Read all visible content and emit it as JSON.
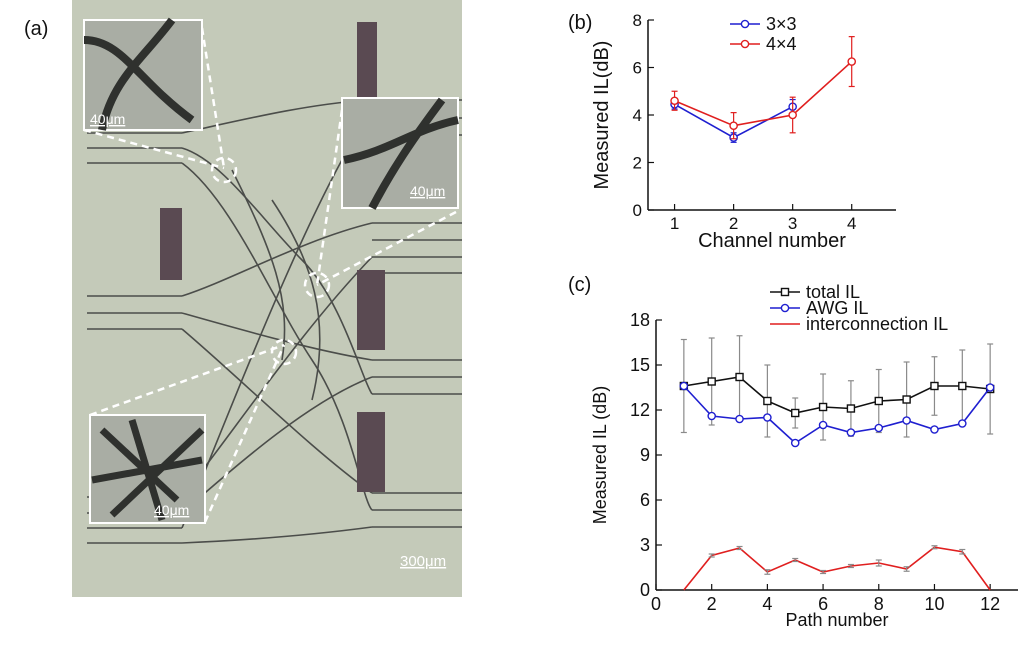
{
  "panel_labels": {
    "a": "(a)",
    "b": "(b)",
    "c": "(c)"
  },
  "micrograph": {
    "insets": [
      {
        "scale": "40μm"
      },
      {
        "scale": "40μm"
      },
      {
        "scale": "40μm"
      }
    ],
    "scale_bar": "300μm",
    "colors": {
      "background": "#c4cab9",
      "waveguide": "#4b4d4a",
      "inset_bg": "#a9ada4"
    }
  },
  "chart_data": [
    {
      "type": "line",
      "xlabel": "Channel number",
      "ylabel": "Measured IL(dB)",
      "xlim": [
        0.55,
        4.75
      ],
      "ylim": [
        0,
        8
      ],
      "xticks": [
        1,
        2,
        3,
        4
      ],
      "yticks": [
        0,
        2,
        4,
        6,
        8
      ],
      "legend_position": "top-center",
      "series": [
        {
          "name": "3×3",
          "color": "#1f1fd0",
          "marker": "circle",
          "x": [
            1,
            2,
            3
          ],
          "y": [
            4.45,
            3.05,
            4.35
          ],
          "err": [
            0.2,
            0.2,
            0.3
          ]
        },
        {
          "name": "4×4",
          "color": "#e01f1f",
          "marker": "circle",
          "x": [
            1,
            2,
            3,
            4
          ],
          "y": [
            4.6,
            3.55,
            4.0,
            6.25
          ],
          "err": [
            0.4,
            0.55,
            0.75,
            1.05
          ]
        }
      ]
    },
    {
      "type": "line",
      "xlabel": "Path number",
      "ylabel": "Measured  IL (dB)",
      "xlim": [
        0,
        13
      ],
      "ylim": [
        0,
        18
      ],
      "xticks": [
        0,
        2,
        4,
        6,
        8,
        10,
        12
      ],
      "yticks": [
        0,
        3,
        6,
        9,
        12,
        15,
        18
      ],
      "legend_position": "top",
      "series": [
        {
          "name": "total IL",
          "color": "#111111",
          "marker": "square",
          "x": [
            1,
            2,
            3,
            4,
            5,
            6,
            7,
            8,
            9,
            10,
            11,
            12
          ],
          "y": [
            13.6,
            13.9,
            14.2,
            12.6,
            11.8,
            12.2,
            12.1,
            12.6,
            12.7,
            13.6,
            13.6,
            13.4
          ],
          "err": [
            3.1,
            2.9,
            2.75,
            2.4,
            1.0,
            2.2,
            1.85,
            2.1,
            2.5,
            1.95,
            2.4,
            3.0
          ]
        },
        {
          "name": "AWG IL",
          "color": "#1f1fd0",
          "marker": "circle",
          "x": [
            1,
            2,
            3,
            4,
            5,
            6,
            7,
            8,
            9,
            10,
            11,
            12
          ],
          "y": [
            13.6,
            11.6,
            11.4,
            11.5,
            9.8,
            11.0,
            10.5,
            10.8,
            11.3,
            10.7,
            11.1,
            13.5
          ],
          "err": [
            0,
            0,
            0,
            0,
            0,
            0,
            0,
            0,
            0,
            0,
            0,
            0
          ]
        },
        {
          "name": "interconnection IL",
          "color": "#e01f1f",
          "marker": "none",
          "x": [
            1,
            2,
            3,
            4,
            5,
            6,
            7,
            8,
            9,
            10,
            11,
            12
          ],
          "y": [
            0.0,
            2.3,
            2.8,
            1.2,
            2.0,
            1.2,
            1.6,
            1.8,
            1.4,
            2.85,
            2.55,
            0.0
          ],
          "err": [
            0,
            0.1,
            0.1,
            0.15,
            0.1,
            0.1,
            0.1,
            0.2,
            0.15,
            0.1,
            0.15,
            0
          ]
        }
      ]
    }
  ]
}
